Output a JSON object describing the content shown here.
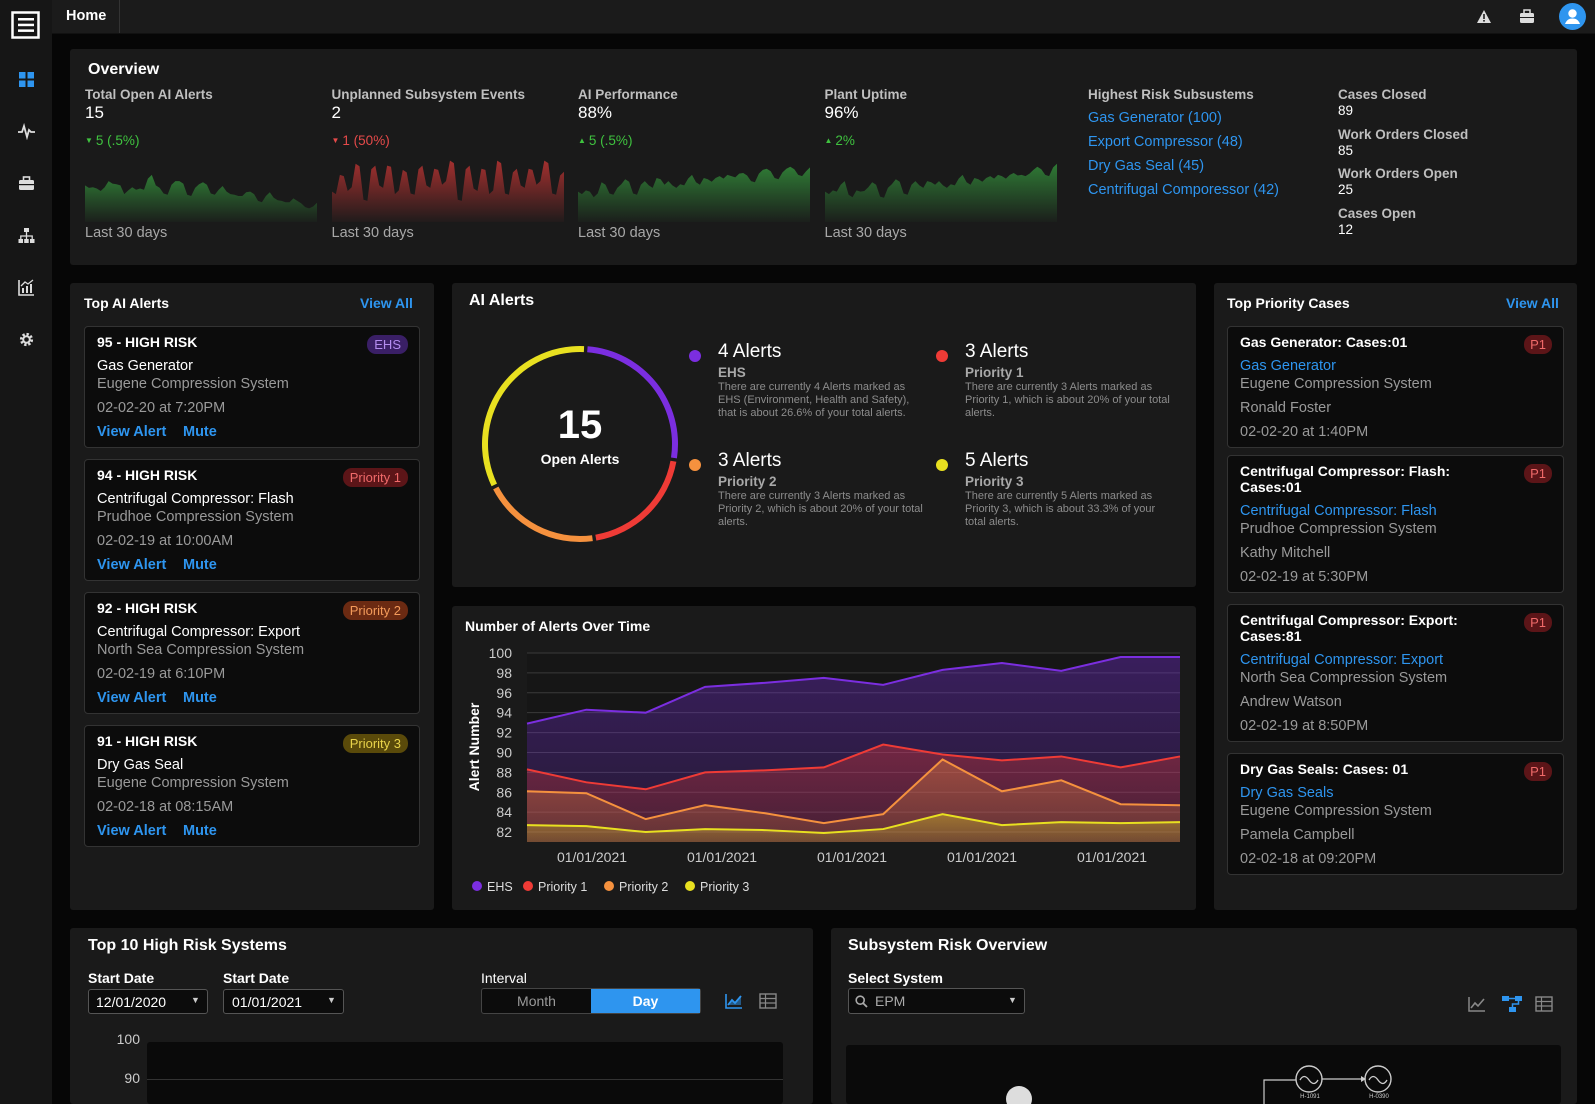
{
  "topbar": {
    "home_label": "Home"
  },
  "overview": {
    "title": "Overview",
    "metrics": [
      {
        "label": "Total Open AI Alerts",
        "value": "15",
        "change": "5 (.5%)",
        "direction": "down",
        "change_color": "#3fc23f",
        "spark_color": "#2f7a35",
        "footer": "Last 30 days"
      },
      {
        "label": "Unplanned Subsystem Events",
        "value": "2",
        "change": "1 (50%)",
        "direction": "down",
        "change_color": "#e64a4a",
        "spark_color": "#a3302f",
        "footer": "Last 30 days"
      },
      {
        "label": "AI Performance",
        "value": "88%",
        "change": "5 (.5%)",
        "direction": "up",
        "change_color": "#3fc23f",
        "spark_color": "#2f7a35",
        "footer": "Last 30 days"
      },
      {
        "label": "Plant Uptime",
        "value": "96%",
        "change": "2%",
        "direction": "up",
        "change_color": "#3fc23f",
        "spark_color": "#2f7a35",
        "footer": "Last 30 days"
      }
    ],
    "risk": {
      "label": "Highest Risk Subsustems",
      "items": [
        "Gas Generator (100)",
        "Export Compressor (48)",
        "Dry Gas Seal (45)",
        "Centrifugal Comporessor (42)"
      ]
    },
    "stats": [
      {
        "label": "Cases Closed",
        "value": "89"
      },
      {
        "label": "Work Orders Closed",
        "value": "85"
      },
      {
        "label": "Work Orders Open",
        "value": "25"
      },
      {
        "label": "Cases Open",
        "value": "12"
      }
    ]
  },
  "top_alerts": {
    "title": "Top AI Alerts",
    "view_all": "View All",
    "items": [
      {
        "title": "95 - HIGH RISK",
        "badge": "EHS",
        "badge_bg": "#3a1f66",
        "badge_fg": "#b48cf0",
        "name": "Gas Generator",
        "system": "Eugene Compression System",
        "time": "02-02-20 at 7:20PM",
        "view": "View Alert",
        "mute": "Mute"
      },
      {
        "title": "94 - HIGH RISK",
        "badge": "Priority 1",
        "badge_bg": "#5c1518",
        "badge_fg": "#f06a6a",
        "name": "Centrifugal Compressor: Flash",
        "system": "Prudhoe Compression System",
        "time": "02-02-19 at 10:00AM",
        "view": "View Alert",
        "mute": "Mute"
      },
      {
        "title": "92 - HIGH RISK",
        "badge": "Priority 2",
        "badge_bg": "#6b2a12",
        "badge_fg": "#f39a5a",
        "name": "Centrifugal Compressor: Export",
        "system": "North Sea Compression System",
        "time": "02-02-19 at 6:10PM",
        "view": "View Alert",
        "mute": "Mute"
      },
      {
        "title": "91 - HIGH RISK",
        "badge": "Priority 3",
        "badge_bg": "#5a4a0a",
        "badge_fg": "#e8d24a",
        "name": "Dry Gas Seal",
        "system": "Eugene Compression System",
        "time": "02-02-18 at 08:15AM",
        "view": "View Alert",
        "mute": "Mute"
      }
    ]
  },
  "ai_alerts": {
    "title": "AI Alerts",
    "donut": {
      "total": "15",
      "label": "Open Alerts",
      "segments": [
        {
          "name": "EHS",
          "value": 4,
          "color": "#7b2ee0"
        },
        {
          "name": "Priority 1",
          "value": 3,
          "color": "#ef3b36"
        },
        {
          "name": "Priority 2",
          "value": 3,
          "color": "#f5913e"
        },
        {
          "name": "Priority 3",
          "value": 5,
          "color": "#e8e020"
        }
      ]
    },
    "legend": [
      {
        "count": "4 Alerts",
        "name": "EHS",
        "color": "#7b2ee0",
        "desc": "There are currently 4 Alerts marked as EHS (Environment, Health and Safety), that is about 26.6% of your total alerts."
      },
      {
        "count": "3 Alerts",
        "name": "Priority 1",
        "color": "#ef3b36",
        "desc": "There are currently 3 Alerts marked as Priority 1, which is about 20% of your total alerts."
      },
      {
        "count": "3 Alerts",
        "name": "Priority 2",
        "color": "#f5913e",
        "desc": "There are currently 3 Alerts marked as Priority 2, which is about 20% of your total alerts."
      },
      {
        "count": "5 Alerts",
        "name": "Priority 3",
        "color": "#e8e020",
        "desc": "There are currently 5 Alerts marked as Priority 3, which is about 33.3% of your total alerts."
      }
    ]
  },
  "chart_data": {
    "type": "area",
    "title": "Number of Alerts Over Time",
    "ylabel": "Alert Number",
    "ylim": [
      81,
      100
    ],
    "yticks": [
      100,
      98,
      96,
      94,
      92,
      90,
      88,
      86,
      84,
      82
    ],
    "xticks": [
      "01/01/2021",
      "01/01/2021",
      "01/01/2021",
      "01/01/2021",
      "01/01/2021"
    ],
    "series": [
      {
        "name": "EHS",
        "color": "#7b2ee0",
        "values": [
          92.9,
          94.3,
          94.0,
          96.6,
          97.0,
          97.5,
          96.8,
          98.3,
          99.0,
          98.2,
          99.6,
          99.6
        ]
      },
      {
        "name": "Priority 1",
        "color": "#ef3b36",
        "values": [
          88.3,
          87.0,
          86.3,
          88.0,
          88.2,
          88.5,
          90.8,
          89.8,
          89.2,
          89.6,
          88.5,
          89.6
        ]
      },
      {
        "name": "Priority 2",
        "color": "#f5913e",
        "values": [
          86.1,
          85.9,
          83.3,
          84.7,
          83.9,
          82.9,
          83.8,
          89.3,
          86.1,
          87.2,
          84.8,
          84.7
        ]
      },
      {
        "name": "Priority 3",
        "color": "#e8e020",
        "values": [
          82.7,
          82.6,
          82.0,
          82.3,
          82.2,
          81.9,
          82.3,
          83.8,
          82.7,
          83.0,
          82.9,
          83.0
        ]
      }
    ]
  },
  "priority_cases": {
    "title": "Top Priority Cases",
    "view_all": "View All",
    "items": [
      {
        "title": "Gas Generator: Cases:01",
        "badge": "P1",
        "link": "Gas Generator",
        "system": "Eugene Compression System",
        "person": "Ronald Foster",
        "time": "02-02-20 at 1:40PM"
      },
      {
        "title": "Centrifugal Compressor: Flash: Cases:01",
        "badge": "P1",
        "link": "Centrifugal Compressor: Flash",
        "system": "Prudhoe Compression System",
        "person": "Kathy Mitchell",
        "time": "02-02-19 at 5:30PM"
      },
      {
        "title": "Centrifugal Compressor: Export: Cases:81",
        "badge": "P1",
        "link": "Centrifugal Compressor: Export",
        "system": "North Sea Compression System",
        "person": "Andrew Watson",
        "time": "02-02-19 at 8:50PM"
      },
      {
        "title": "Dry Gas Seals: Cases: 01",
        "badge": "P1",
        "link": "Dry Gas Seals",
        "system": "Eugene Compression System",
        "person": "Pamela Campbell",
        "time": "02-02-18 at 09:20PM"
      }
    ]
  },
  "top10": {
    "title": "Top 10 High Risk Systems",
    "start1_label": "Start Date",
    "start1_value": "12/01/2020",
    "start2_label": "Start Date",
    "start2_value": "01/01/2021",
    "interval_label": "Interval",
    "month": "Month",
    "day": "Day",
    "yticks": [
      "100",
      "90"
    ]
  },
  "subsystem": {
    "title": "Subsystem Risk Overview",
    "select_label": "Select System",
    "select_value": "EPM",
    "nodes": [
      "H-1091",
      "H-0390"
    ]
  }
}
